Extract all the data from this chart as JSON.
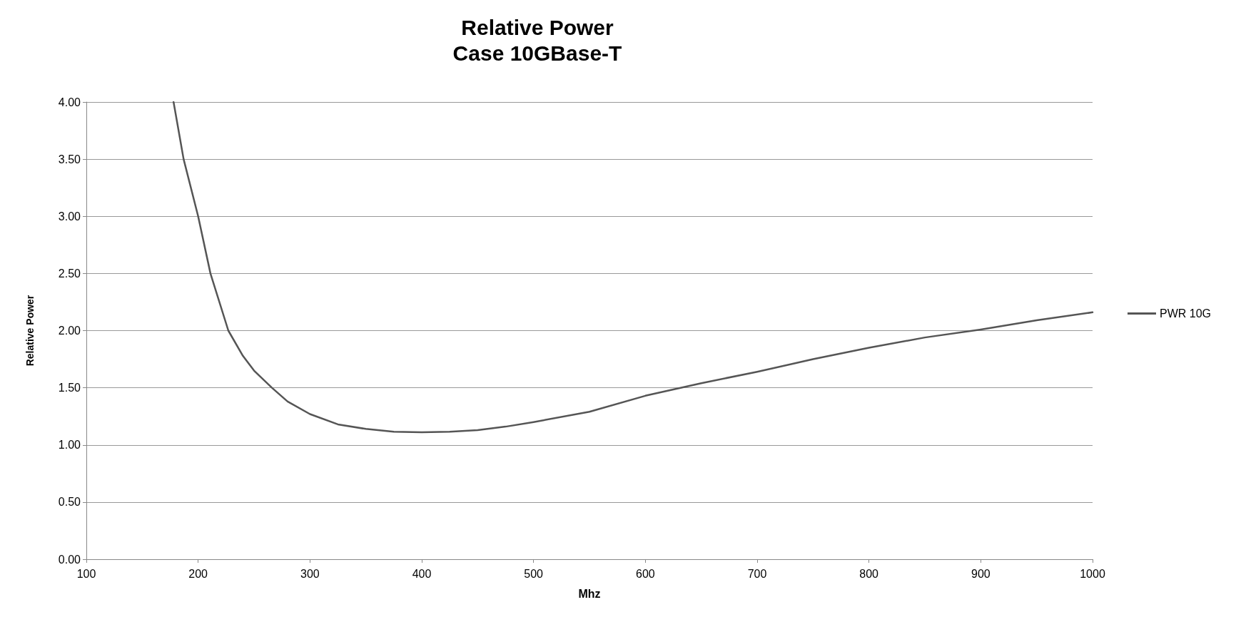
{
  "chart_data": {
    "type": "line",
    "title": "Relative Power",
    "subtitle": "Case 10GBase-T",
    "xlabel": "Mhz",
    "ylabel": "Relative Power",
    "xlim": [
      100,
      1000
    ],
    "xticks": [
      100,
      200,
      300,
      400,
      500,
      600,
      700,
      800,
      900,
      1000
    ],
    "ylim": [
      0,
      4
    ],
    "yticks": [
      {
        "value": 0,
        "label": "0.00"
      },
      {
        "value": 0.5,
        "label": "0.50"
      },
      {
        "value": 1,
        "label": "1.00"
      },
      {
        "value": 1.5,
        "label": "1.50"
      },
      {
        "value": 2,
        "label": "2.00"
      },
      {
        "value": 2.5,
        "label": "2.50"
      },
      {
        "value": 3,
        "label": "3.00"
      },
      {
        "value": 3.5,
        "label": "3.50"
      },
      {
        "value": 4,
        "label": "4.00"
      }
    ],
    "grid": "y",
    "legend": "right",
    "marker": "none",
    "line_style": "solid",
    "series": [
      {
        "name": "PWR 10G",
        "color": "#555555",
        "x": [
          178,
          187,
          200,
          211,
          227,
          240,
          250,
          266,
          280,
          300,
          325,
          350,
          375,
          400,
          425,
          450,
          475,
          500,
          550,
          600,
          650,
          700,
          750,
          800,
          850,
          900,
          950,
          1000
        ],
        "values": [
          4.0,
          3.5,
          3.0,
          2.5,
          2.0,
          1.78,
          1.65,
          1.5,
          1.38,
          1.27,
          1.18,
          1.14,
          1.115,
          1.11,
          1.115,
          1.13,
          1.16,
          1.2,
          1.29,
          1.43,
          1.54,
          1.64,
          1.75,
          1.85,
          1.94,
          2.01,
          2.09,
          2.16
        ]
      }
    ]
  }
}
